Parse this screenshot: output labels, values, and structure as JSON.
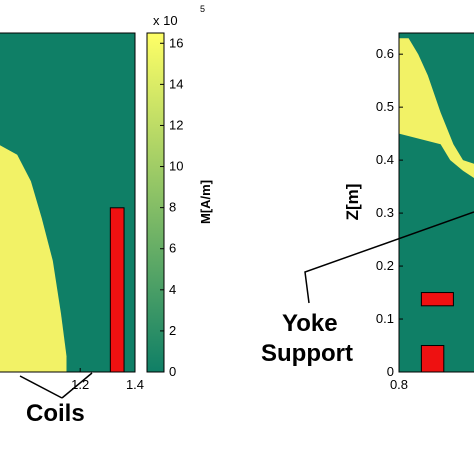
{
  "chart_data": [
    {
      "type": "heatmap",
      "panel": "left",
      "x_ticks": [
        1.2,
        1.4
      ],
      "x_tick_labels": [
        "1.2",
        "1.4"
      ],
      "xlim": [
        0.9,
        1.4
      ],
      "ylim": [
        0,
        0.64
      ],
      "colorbar": {
        "label": "M[A/m]",
        "multiplier": "x 10",
        "multiplier_exponent": "5",
        "ticks": [
          0,
          2,
          4,
          6,
          8,
          10,
          12,
          14,
          16
        ],
        "tick_labels": [
          "0",
          "2",
          "4",
          "6",
          "8",
          "10",
          "12",
          "14",
          "16"
        ],
        "range": [
          0,
          16.5
        ],
        "colormap": "summer",
        "low_color": "#0f7f66",
        "high_color": "#ffff66"
      },
      "regions": [
        {
          "name": "saturated-iron",
          "value": 16.5,
          "color": "#f2f266",
          "boundary": [
            [
              0.9,
              0.43
            ],
            [
              0.97,
              0.41
            ],
            [
              1.02,
              0.36
            ],
            [
              1.06,
              0.29
            ],
            [
              1.1,
              0.21
            ],
            [
              1.13,
              0.11
            ],
            [
              1.15,
              0.03
            ],
            [
              1.15,
              0.0
            ],
            [
              0.9,
              0.0
            ]
          ]
        },
        {
          "name": "background",
          "value": 0.5,
          "color": "#0f7f66"
        }
      ],
      "coils": [
        {
          "x": [
            1.31,
            1.36
          ],
          "y": [
            0.0,
            0.31
          ],
          "color": "#ee1111"
        }
      ],
      "annotations": [
        {
          "text": "Coils",
          "pointer_to": [
            1.33,
            0.02
          ]
        }
      ]
    },
    {
      "type": "heatmap",
      "panel": "right",
      "ylabel": "Z[m]",
      "x_ticks": [
        0.8
      ],
      "x_tick_labels": [
        "0.8"
      ],
      "y_ticks": [
        0,
        0.1,
        0.2,
        0.3,
        0.4,
        0.5,
        0.6
      ],
      "y_tick_labels": [
        "0",
        "0.1",
        "0.2",
        "0.3",
        "0.4",
        "0.5",
        "0.6"
      ],
      "xlim": [
        0.8,
        1.05
      ],
      "ylim": [
        0,
        0.64
      ],
      "regions": [
        {
          "name": "saturated-yoke",
          "value": 16.5,
          "color": "#f2f266",
          "boundary": [
            [
              0.8,
              0.63
            ],
            [
              0.83,
              0.63
            ],
            [
              0.86,
              0.6
            ],
            [
              0.89,
              0.56
            ],
            [
              0.93,
              0.49
            ],
            [
              0.97,
              0.43
            ],
            [
              1.0,
              0.4
            ],
            [
              1.05,
              0.39
            ],
            [
              1.05,
              0.36
            ],
            [
              1.0,
              0.38
            ],
            [
              0.96,
              0.4
            ],
            [
              0.93,
              0.43
            ],
            [
              0.8,
              0.45
            ]
          ]
        },
        {
          "name": "background",
          "value": 0.5,
          "color": "#0f7f66"
        }
      ],
      "coils": [
        {
          "x": [
            0.87,
            0.97
          ],
          "y": [
            0.125,
            0.15
          ],
          "color": "#ee1111"
        },
        {
          "x": [
            0.87,
            0.94
          ],
          "y": [
            0.0,
            0.05
          ],
          "color": "#ee1111"
        }
      ],
      "annotations": [
        {
          "text": "Yoke",
          "pointer_to": [
            1.05,
            0.33
          ]
        },
        {
          "text": "Support",
          "pointer_to": [
            1.05,
            0.33
          ]
        }
      ]
    }
  ]
}
